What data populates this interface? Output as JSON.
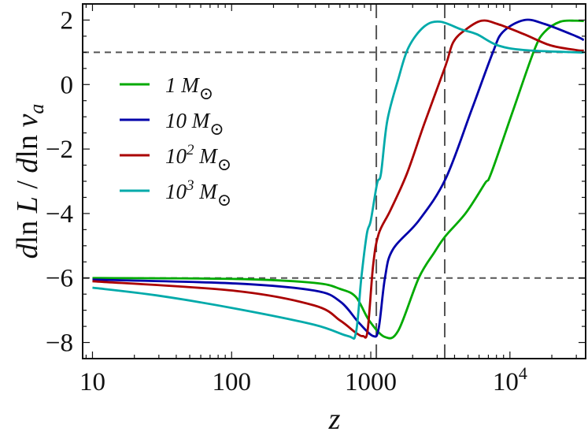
{
  "chart_data": {
    "type": "line",
    "title": "",
    "xlabel": "z",
    "ylabel": "dln L / dln v_a",
    "xscale": "log",
    "xlim": [
      8.5,
      35000
    ],
    "ylim": [
      -8.5,
      2.5
    ],
    "xticks": [
      {
        "value": 10,
        "label": "10"
      },
      {
        "value": 100,
        "label": "100"
      },
      {
        "value": 1000,
        "label": "1000"
      },
      {
        "value": 10000,
        "label": "10^4"
      }
    ],
    "yticks": [
      {
        "value": 2,
        "label": "2"
      },
      {
        "value": 0,
        "label": "0"
      },
      {
        "value": -2,
        "label": "−2"
      },
      {
        "value": -4,
        "label": "−4"
      },
      {
        "value": -6,
        "label": "−6"
      },
      {
        "value": -8,
        "label": "−8"
      }
    ],
    "grid": false,
    "legend_position": "top-left",
    "reference_lines": {
      "horizontal": [
        1,
        -6
      ],
      "vertical": [
        1096,
        3400
      ],
      "color": "#555555",
      "style": "dashed"
    },
    "series": [
      {
        "name": "1 M⊙",
        "color": "#00aa00",
        "x": [
          10,
          107,
          392,
          603,
          782,
          974,
          1264,
          1577,
          2212,
          2869,
          3443,
          4827,
          6600,
          7317,
          10540,
          14970,
          17730,
          23000,
          29850,
          33960
        ],
        "y": [
          -6.0,
          -6.03,
          -6.15,
          -6.34,
          -6.59,
          -7.32,
          -7.83,
          -7.63,
          -6.0,
          -5.2,
          -4.7,
          -3.98,
          -3.07,
          -2.76,
          -0.8,
          1.07,
          1.63,
          1.95,
          1.98,
          1.97
        ]
      },
      {
        "name": "10 M⊙",
        "color": "#0000aa",
        "x": [
          10,
          107,
          392,
          603,
          822,
          1040,
          1140,
          1264,
          1439,
          2212,
          3443,
          5289,
          7510,
          8898,
          12650,
          17730,
          29850,
          33960
        ],
        "y": [
          -6.05,
          -6.17,
          -6.39,
          -6.73,
          -7.39,
          -7.8,
          -7.56,
          -6.0,
          -5.12,
          -4.22,
          -2.93,
          -0.8,
          0.98,
          1.63,
          2.0,
          1.88,
          1.5,
          1.38
        ]
      },
      {
        "name": "10² M⊙",
        "color": "#aa0000",
        "x": [
          10,
          107,
          392,
          603,
          782,
          879,
          949,
          1040,
          1140,
          1384,
          1820,
          2422,
          3443,
          3921,
          4827,
          6265,
          8124,
          12650,
          19420,
          29850,
          33960
        ],
        "y": [
          -6.1,
          -6.4,
          -6.85,
          -7.32,
          -7.7,
          -7.8,
          -7.63,
          -5.6,
          -4.63,
          -3.9,
          -2.76,
          -1.22,
          0.58,
          1.32,
          1.71,
          1.98,
          1.88,
          1.56,
          1.22,
          1.07,
          1.05
        ]
      },
      {
        "name": "10³ M⊙",
        "color": "#00aaaa",
        "x": [
          10,
          29,
          107,
          392,
          685,
          782,
          855,
          937,
          1000,
          1110,
          1184,
          1314,
          1577,
          1867,
          2422,
          3143,
          4466,
          5792,
          8124,
          12650,
          29850,
          33960
        ],
        "y": [
          -6.3,
          -6.54,
          -6.95,
          -7.45,
          -7.8,
          -7.7,
          -6.0,
          -4.63,
          -4.22,
          -3.07,
          -2.76,
          -1.12,
          0.17,
          1.15,
          1.8,
          1.95,
          1.71,
          1.56,
          1.22,
          1.07,
          1.0,
          1.0
        ]
      }
    ]
  }
}
